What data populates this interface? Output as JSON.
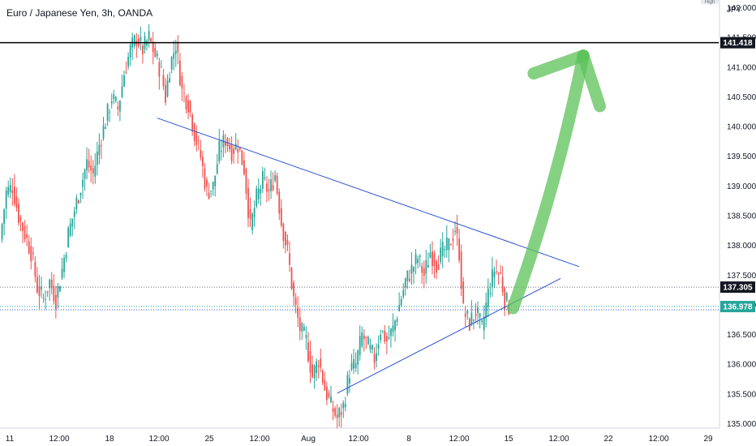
{
  "chart_data": {
    "type": "candlestick",
    "title": "Euro / Japanese Yen, 3h, OANDA",
    "currency": "JPY",
    "y_axis_corner_label": "High",
    "ylim": [
      135.0,
      142.0
    ],
    "y_ticks": [
      "142.000",
      "141.500",
      "141.000",
      "140.500",
      "140.000",
      "139.500",
      "139.000",
      "138.500",
      "138.000",
      "137.500",
      "137.000",
      "136.500",
      "136.000",
      "135.500",
      "135.000"
    ],
    "x_ticks": [
      "11",
      "12:00",
      "18",
      "12:00",
      "25",
      "12:00",
      "Aug",
      "12:00",
      "8",
      "12:00",
      "15",
      "12:00",
      "22",
      "12:00",
      "29"
    ],
    "close_path": [
      [
        0,
        138.1
      ],
      [
        3,
        138.9
      ],
      [
        6,
        139.0
      ],
      [
        9,
        138.5
      ],
      [
        12,
        138.2
      ],
      [
        15,
        137.9
      ],
      [
        18,
        137.3
      ],
      [
        21,
        137.1
      ],
      [
        24,
        137.4
      ],
      [
        27,
        137.1
      ],
      [
        30,
        137.6
      ],
      [
        33,
        138.2
      ],
      [
        36,
        138.6
      ],
      [
        39,
        139.0
      ],
      [
        42,
        139.4
      ],
      [
        45,
        139.2
      ],
      [
        48,
        139.7
      ],
      [
        51,
        140.1
      ],
      [
        54,
        140.5
      ],
      [
        57,
        140.3
      ],
      [
        60,
        140.9
      ],
      [
        63,
        141.3
      ],
      [
        66,
        141.5
      ],
      [
        69,
        141.3
      ],
      [
        72,
        141.5
      ],
      [
        75,
        141.2
      ],
      [
        78,
        140.9
      ],
      [
        80,
        140.5
      ],
      [
        82,
        141.0
      ],
      [
        85,
        141.4
      ],
      [
        88,
        140.6
      ],
      [
        91,
        140.4
      ],
      [
        94,
        139.9
      ],
      [
        97,
        139.5
      ],
      [
        100,
        138.9
      ],
      [
        103,
        139.0
      ],
      [
        106,
        139.6
      ],
      [
        109,
        139.8
      ],
      [
        112,
        139.6
      ],
      [
        115,
        139.7
      ],
      [
        118,
        139.3
      ],
      [
        121,
        138.3
      ],
      [
        124,
        138.8
      ],
      [
        127,
        139.1
      ],
      [
        130,
        138.9
      ],
      [
        133,
        139.2
      ],
      [
        136,
        138.4
      ],
      [
        139,
        137.9
      ],
      [
        142,
        137.1
      ],
      [
        145,
        136.6
      ],
      [
        148,
        136.4
      ],
      [
        151,
        135.8
      ],
      [
        154,
        136.1
      ],
      [
        157,
        135.6
      ],
      [
        160,
        135.3
      ],
      [
        163,
        135.1
      ],
      [
        166,
        135.3
      ],
      [
        169,
        135.9
      ],
      [
        172,
        136.0
      ],
      [
        175,
        136.5
      ],
      [
        178,
        136.3
      ],
      [
        181,
        136.1
      ],
      [
        184,
        136.6
      ],
      [
        187,
        136.4
      ],
      [
        190,
        136.6
      ],
      [
        193,
        137.0
      ],
      [
        196,
        137.4
      ],
      [
        199,
        137.6
      ],
      [
        202,
        137.8
      ],
      [
        205,
        137.5
      ],
      [
        208,
        137.9
      ],
      [
        211,
        137.7
      ],
      [
        214,
        137.9
      ],
      [
        217,
        138.0
      ],
      [
        220,
        138.3
      ],
      [
        222,
        137.9
      ],
      [
        224,
        136.9
      ],
      [
        227,
        136.7
      ],
      [
        230,
        136.9
      ],
      [
        233,
        136.6
      ],
      [
        236,
        137.2
      ],
      [
        239,
        137.6
      ],
      [
        242,
        137.5
      ],
      [
        244,
        137.1
      ],
      [
        246,
        136.98
      ]
    ],
    "lines": {
      "resistance_level": {
        "price": 141.418,
        "label": "141.418"
      },
      "level_a": {
        "price": 137.305,
        "label": "137.305"
      },
      "current_price": {
        "price": 136.978,
        "label": "136.978",
        "color": "#26a69a"
      },
      "descending_trendline": {
        "start": {
          "t": 76,
          "price": 140.15
        },
        "end": {
          "t": 280,
          "price": 137.65
        }
      },
      "ascending_trendline": {
        "start": {
          "t": 163,
          "price": 135.52
        },
        "end": {
          "t": 271,
          "price": 137.45
        }
      },
      "trendline_color": "#2b50d1",
      "level_color": "#000000"
    },
    "projection_arrow": {
      "color": "#5cc258",
      "path": [
        {
          "t": 248,
          "price": 136.95
        },
        {
          "t": 264,
          "price": 138.5
        },
        {
          "t": 275,
          "price": 140.0
        },
        {
          "t": 282,
          "price": 141.2
        }
      ],
      "head_left": {
        "t": 258,
        "price": 140.9
      },
      "head_right": {
        "t": 290,
        "price": 140.35
      }
    },
    "colors": {
      "up": "#26a69a",
      "down": "#ef5350",
      "grid": "#e0e3eb"
    },
    "grid": false
  }
}
